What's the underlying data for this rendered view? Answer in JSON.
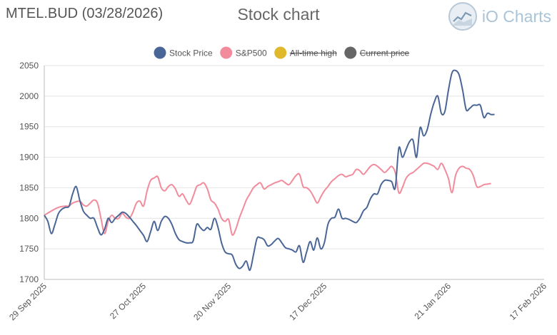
{
  "header": {
    "ticker": "MTEL.BUD (03/28/2026)",
    "title": "Stock chart",
    "brand": "iO Charts",
    "brand_icon": "chart-logo-icon"
  },
  "colors": {
    "stock": "#4a6696",
    "sp500": "#f28b9b",
    "ath": "#e0b82c",
    "current": "#666666",
    "grid": "#e4e4e4"
  },
  "chart_data": {
    "type": "line",
    "xlim": [
      "2025-09-29",
      "2026-02-17"
    ],
    "ylim": [
      1700,
      2050
    ],
    "yticks": [
      1700,
      1750,
      1800,
      1850,
      1900,
      1950,
      2000,
      2050
    ],
    "xticks": [
      "29 Sep 2025",
      "27 Oct 2025",
      "20 Nov 2025",
      "17 Dec 2025",
      "21 Jan 2026",
      "17 Feb 2026"
    ],
    "xtick_dates": [
      "2025-09-29",
      "2025-10-27",
      "2025-11-20",
      "2025-12-17",
      "2026-01-21",
      "2026-02-17"
    ],
    "legend": [
      {
        "name": "Stock Price",
        "hidden": false
      },
      {
        "name": "S&P500",
        "hidden": false
      },
      {
        "name": "All-time high",
        "hidden": true
      },
      {
        "name": "Current price",
        "hidden": true
      }
    ],
    "series": [
      {
        "name": "Stock Price",
        "points": [
          [
            "2025-09-29",
            1805
          ],
          [
            "2025-09-30",
            1795
          ],
          [
            "2025-10-01",
            1775
          ],
          [
            "2025-10-02",
            1790
          ],
          [
            "2025-10-03",
            1808
          ],
          [
            "2025-10-04",
            1815
          ],
          [
            "2025-10-05",
            1818
          ],
          [
            "2025-10-06",
            1820
          ],
          [
            "2025-10-07",
            1840
          ],
          [
            "2025-10-08",
            1852
          ],
          [
            "2025-10-09",
            1830
          ],
          [
            "2025-10-10",
            1812
          ],
          [
            "2025-10-11",
            1805
          ],
          [
            "2025-10-12",
            1800
          ],
          [
            "2025-10-13",
            1800
          ],
          [
            "2025-10-14",
            1785
          ],
          [
            "2025-10-15",
            1773
          ],
          [
            "2025-10-16",
            1782
          ],
          [
            "2025-10-17",
            1800
          ],
          [
            "2025-10-18",
            1793
          ],
          [
            "2025-10-19",
            1800
          ],
          [
            "2025-10-20",
            1805
          ],
          [
            "2025-10-21",
            1810
          ],
          [
            "2025-10-22",
            1808
          ],
          [
            "2025-10-23",
            1802
          ],
          [
            "2025-10-24",
            1795
          ],
          [
            "2025-10-25",
            1788
          ],
          [
            "2025-10-26",
            1780
          ],
          [
            "2025-10-27",
            1772
          ],
          [
            "2025-10-28",
            1762
          ],
          [
            "2025-10-29",
            1778
          ],
          [
            "2025-10-30",
            1795
          ],
          [
            "2025-10-31",
            1780
          ],
          [
            "2025-11-01",
            1795
          ],
          [
            "2025-11-02",
            1803
          ],
          [
            "2025-11-03",
            1800
          ],
          [
            "2025-11-04",
            1790
          ],
          [
            "2025-11-05",
            1775
          ],
          [
            "2025-11-06",
            1765
          ],
          [
            "2025-11-07",
            1762
          ],
          [
            "2025-11-08",
            1760
          ],
          [
            "2025-11-09",
            1760
          ],
          [
            "2025-11-10",
            1763
          ],
          [
            "2025-11-11",
            1790
          ],
          [
            "2025-11-12",
            1785
          ],
          [
            "2025-11-13",
            1780
          ],
          [
            "2025-11-14",
            1785
          ],
          [
            "2025-11-15",
            1782
          ],
          [
            "2025-11-16",
            1800
          ],
          [
            "2025-11-17",
            1785
          ],
          [
            "2025-11-18",
            1760
          ],
          [
            "2025-11-19",
            1745
          ],
          [
            "2025-11-20",
            1742
          ],
          [
            "2025-11-21",
            1740
          ],
          [
            "2025-11-22",
            1725
          ],
          [
            "2025-11-23",
            1718
          ],
          [
            "2025-11-24",
            1722
          ],
          [
            "2025-11-25",
            1730
          ],
          [
            "2025-11-26",
            1715
          ],
          [
            "2025-11-27",
            1740
          ],
          [
            "2025-11-28",
            1767
          ],
          [
            "2025-11-29",
            1768
          ],
          [
            "2025-11-30",
            1765
          ],
          [
            "2025-12-01",
            1755
          ],
          [
            "2025-12-02",
            1757
          ],
          [
            "2025-12-03",
            1763
          ],
          [
            "2025-12-04",
            1767
          ],
          [
            "2025-12-05",
            1760
          ],
          [
            "2025-12-06",
            1752
          ],
          [
            "2025-12-07",
            1750
          ],
          [
            "2025-12-08",
            1748
          ],
          [
            "2025-12-09",
            1745
          ],
          [
            "2025-12-10",
            1755
          ],
          [
            "2025-12-11",
            1728
          ],
          [
            "2025-12-12",
            1745
          ],
          [
            "2025-12-13",
            1762
          ],
          [
            "2025-12-14",
            1748
          ],
          [
            "2025-12-15",
            1768
          ],
          [
            "2025-12-16",
            1750
          ],
          [
            "2025-12-17",
            1760
          ],
          [
            "2025-12-18",
            1790
          ],
          [
            "2025-12-19",
            1800
          ],
          [
            "2025-12-20",
            1802
          ],
          [
            "2025-12-21",
            1815
          ],
          [
            "2025-12-22",
            1800
          ],
          [
            "2025-12-23",
            1800
          ],
          [
            "2025-12-24",
            1798
          ],
          [
            "2025-12-25",
            1795
          ],
          [
            "2025-12-26",
            1793
          ],
          [
            "2025-12-27",
            1800
          ],
          [
            "2025-12-28",
            1812
          ],
          [
            "2025-12-29",
            1818
          ],
          [
            "2025-12-30",
            1832
          ],
          [
            "2025-12-31",
            1840
          ],
          [
            "2026-01-01",
            1840
          ],
          [
            "2026-01-02",
            1855
          ],
          [
            "2026-01-03",
            1862
          ],
          [
            "2026-01-04",
            1862
          ],
          [
            "2026-01-05",
            1860
          ],
          [
            "2026-01-06",
            1850
          ],
          [
            "2026-01-07",
            1915
          ],
          [
            "2026-01-08",
            1900
          ],
          [
            "2026-01-09",
            1912
          ],
          [
            "2026-01-10",
            1925
          ],
          [
            "2026-01-11",
            1928
          ],
          [
            "2026-01-12",
            1900
          ],
          [
            "2026-01-13",
            1948
          ],
          [
            "2026-01-14",
            1935
          ],
          [
            "2026-01-15",
            1945
          ],
          [
            "2026-01-16",
            1970
          ],
          [
            "2026-01-17",
            1990
          ],
          [
            "2026-01-18",
            2000
          ],
          [
            "2026-01-19",
            1972
          ],
          [
            "2026-01-20",
            1975
          ],
          [
            "2026-01-21",
            2010
          ],
          [
            "2026-01-22",
            2038
          ],
          [
            "2026-01-23",
            2042
          ],
          [
            "2026-01-24",
            2035
          ],
          [
            "2026-01-25",
            2010
          ],
          [
            "2026-01-26",
            1978
          ],
          [
            "2026-01-27",
            1980
          ],
          [
            "2026-01-28",
            1985
          ],
          [
            "2026-01-29",
            1985
          ],
          [
            "2026-01-30",
            1985
          ],
          [
            "2026-01-31",
            1965
          ],
          [
            "2026-02-01",
            1972
          ],
          [
            "2026-02-02",
            1970
          ],
          [
            "2026-02-03",
            1970
          ]
        ]
      },
      {
        "name": "S&P500",
        "points": [
          [
            "2025-09-29",
            1805
          ],
          [
            "2025-10-01",
            1812
          ],
          [
            "2025-10-03",
            1818
          ],
          [
            "2025-10-05",
            1820
          ],
          [
            "2025-10-06",
            1820
          ],
          [
            "2025-10-07",
            1825
          ],
          [
            "2025-10-09",
            1828
          ],
          [
            "2025-10-10",
            1822
          ],
          [
            "2025-10-11",
            1820
          ],
          [
            "2025-10-12",
            1825
          ],
          [
            "2025-10-13",
            1830
          ],
          [
            "2025-10-14",
            1825
          ],
          [
            "2025-10-15",
            1800
          ],
          [
            "2025-10-16",
            1775
          ],
          [
            "2025-10-17",
            1795
          ],
          [
            "2025-10-18",
            1805
          ],
          [
            "2025-10-19",
            1800
          ],
          [
            "2025-10-20",
            1800
          ],
          [
            "2025-10-21",
            1808
          ],
          [
            "2025-10-22",
            1802
          ],
          [
            "2025-10-23",
            1800
          ],
          [
            "2025-10-24",
            1810
          ],
          [
            "2025-10-25",
            1825
          ],
          [
            "2025-10-26",
            1828
          ],
          [
            "2025-10-27",
            1820
          ],
          [
            "2025-10-28",
            1845
          ],
          [
            "2025-10-29",
            1862
          ],
          [
            "2025-10-30",
            1866
          ],
          [
            "2025-10-31",
            1868
          ],
          [
            "2025-11-01",
            1850
          ],
          [
            "2025-11-02",
            1845
          ],
          [
            "2025-11-03",
            1852
          ],
          [
            "2025-11-04",
            1855
          ],
          [
            "2025-11-05",
            1848
          ],
          [
            "2025-11-06",
            1836
          ],
          [
            "2025-11-07",
            1840
          ],
          [
            "2025-11-08",
            1830
          ],
          [
            "2025-11-09",
            1823
          ],
          [
            "2025-11-10",
            1836
          ],
          [
            "2025-11-11",
            1852
          ],
          [
            "2025-11-12",
            1855
          ],
          [
            "2025-11-13",
            1858
          ],
          [
            "2025-11-14",
            1848
          ],
          [
            "2025-11-15",
            1830
          ],
          [
            "2025-11-16",
            1825
          ],
          [
            "2025-11-17",
            1815
          ],
          [
            "2025-11-18",
            1800
          ],
          [
            "2025-11-19",
            1795
          ],
          [
            "2025-11-20",
            1798
          ],
          [
            "2025-11-21",
            1773
          ],
          [
            "2025-11-22",
            1782
          ],
          [
            "2025-11-23",
            1800
          ],
          [
            "2025-11-24",
            1815
          ],
          [
            "2025-11-25",
            1830
          ],
          [
            "2025-11-26",
            1840
          ],
          [
            "2025-11-27",
            1850
          ],
          [
            "2025-11-28",
            1855
          ],
          [
            "2025-11-29",
            1858
          ],
          [
            "2025-11-30",
            1848
          ],
          [
            "2025-12-01",
            1852
          ],
          [
            "2025-12-02",
            1855
          ],
          [
            "2025-12-03",
            1858
          ],
          [
            "2025-12-04",
            1860
          ],
          [
            "2025-12-05",
            1862
          ],
          [
            "2025-12-06",
            1858
          ],
          [
            "2025-12-07",
            1855
          ],
          [
            "2025-12-08",
            1862
          ],
          [
            "2025-12-09",
            1870
          ],
          [
            "2025-12-10",
            1872
          ],
          [
            "2025-12-11",
            1852
          ],
          [
            "2025-12-12",
            1850
          ],
          [
            "2025-12-13",
            1845
          ],
          [
            "2025-12-14",
            1835
          ],
          [
            "2025-12-15",
            1825
          ],
          [
            "2025-12-16",
            1835
          ],
          [
            "2025-12-17",
            1845
          ],
          [
            "2025-12-18",
            1852
          ],
          [
            "2025-12-19",
            1860
          ],
          [
            "2025-12-20",
            1865
          ],
          [
            "2025-12-21",
            1870
          ],
          [
            "2025-12-22",
            1872
          ],
          [
            "2025-12-23",
            1868
          ],
          [
            "2025-12-24",
            1870
          ],
          [
            "2025-12-25",
            1872
          ],
          [
            "2025-12-26",
            1880
          ],
          [
            "2025-12-27",
            1878
          ],
          [
            "2025-12-28",
            1872
          ],
          [
            "2025-12-29",
            1878
          ],
          [
            "2025-12-30",
            1885
          ],
          [
            "2025-12-31",
            1888
          ],
          [
            "2026-01-01",
            1885
          ],
          [
            "2026-01-02",
            1880
          ],
          [
            "2026-01-03",
            1875
          ],
          [
            "2026-01-04",
            1880
          ],
          [
            "2026-01-05",
            1885
          ],
          [
            "2026-01-06",
            1875
          ],
          [
            "2026-01-07",
            1842
          ],
          [
            "2026-01-08",
            1850
          ],
          [
            "2026-01-09",
            1865
          ],
          [
            "2026-01-10",
            1872
          ],
          [
            "2026-01-11",
            1875
          ],
          [
            "2026-01-12",
            1880
          ],
          [
            "2026-01-13",
            1885
          ],
          [
            "2026-01-14",
            1890
          ],
          [
            "2026-01-15",
            1890
          ],
          [
            "2026-01-16",
            1888
          ],
          [
            "2026-01-17",
            1885
          ],
          [
            "2026-01-18",
            1880
          ],
          [
            "2026-01-19",
            1890
          ],
          [
            "2026-01-20",
            1880
          ],
          [
            "2026-01-21",
            1865
          ],
          [
            "2026-01-22",
            1842
          ],
          [
            "2026-01-23",
            1870
          ],
          [
            "2026-01-24",
            1882
          ],
          [
            "2026-01-25",
            1885
          ],
          [
            "2026-01-26",
            1882
          ],
          [
            "2026-01-27",
            1880
          ],
          [
            "2026-01-28",
            1870
          ],
          [
            "2026-01-29",
            1852
          ],
          [
            "2026-01-30",
            1852
          ],
          [
            "2026-01-31",
            1855
          ],
          [
            "2026-02-01",
            1856
          ],
          [
            "2026-02-02",
            1857
          ]
        ]
      }
    ]
  }
}
